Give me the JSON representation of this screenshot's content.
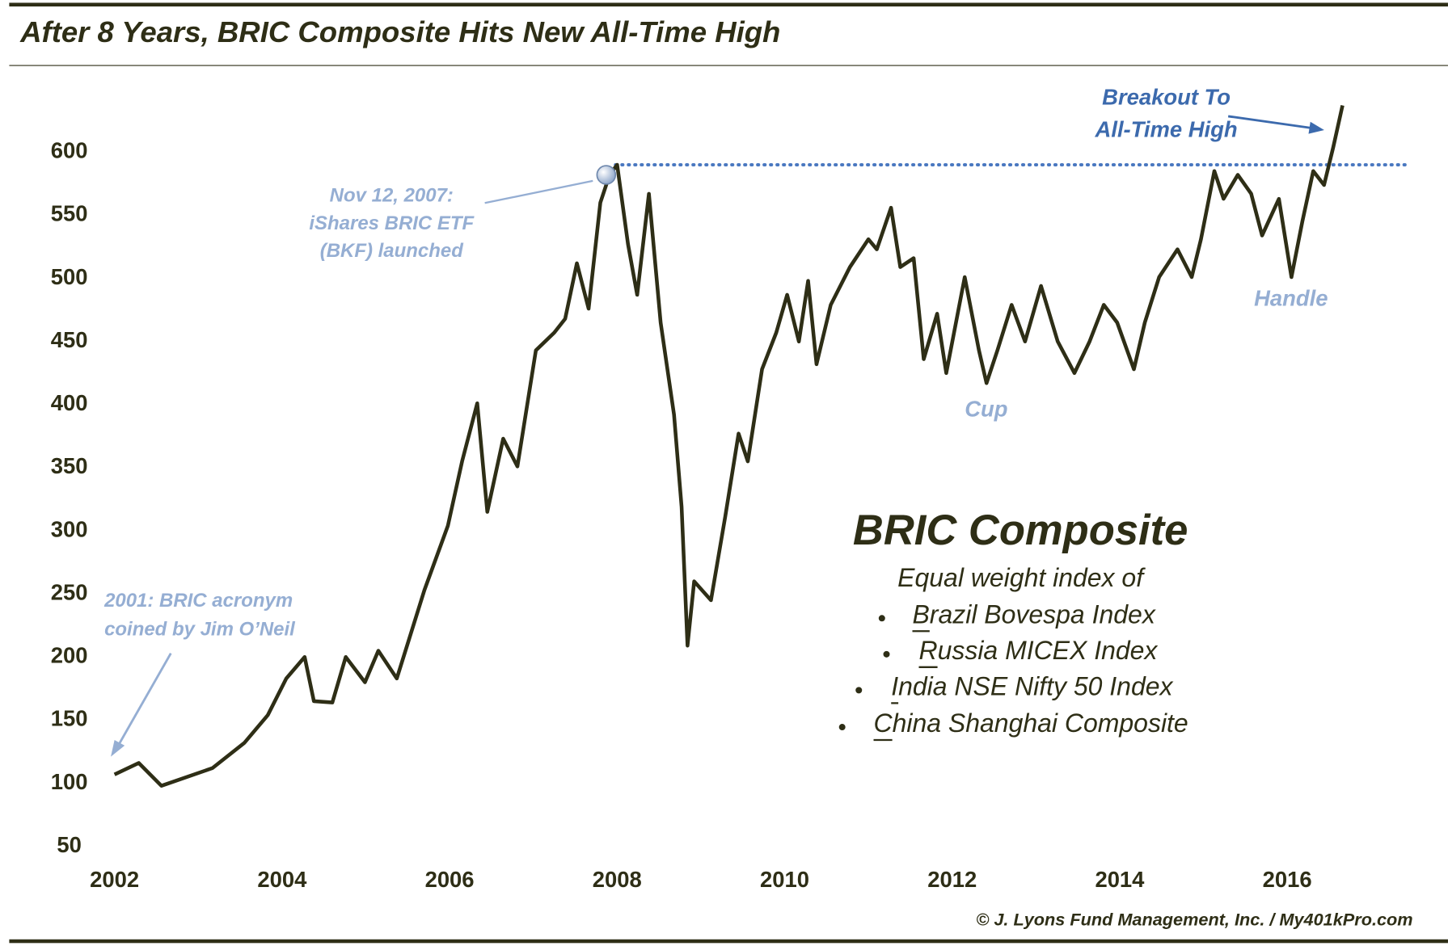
{
  "chart_data": {
    "type": "line",
    "title": "After 8 Years, BRIC Composite Hits New All-Time High",
    "x": [
      2002.0,
      2002.29,
      2002.56,
      2003.17,
      2003.55,
      2003.83,
      2004.05,
      2004.27,
      2004.38,
      2004.6,
      2004.76,
      2004.99,
      2005.15,
      2005.37,
      2005.7,
      2005.98,
      2006.15,
      2006.33,
      2006.45,
      2006.64,
      2006.81,
      2007.03,
      2007.25,
      2007.38,
      2007.52,
      2007.66,
      2007.8,
      2007.91,
      2008.0,
      2008.13,
      2008.24,
      2008.38,
      2008.52,
      2008.68,
      2008.77,
      2008.84,
      2008.92,
      2009.12,
      2009.29,
      2009.45,
      2009.56,
      2009.73,
      2009.9,
      2010.03,
      2010.17,
      2010.28,
      2010.38,
      2010.55,
      2010.78,
      2011.0,
      2011.1,
      2011.27,
      2011.38,
      2011.54,
      2011.66,
      2011.82,
      2011.93,
      2012.15,
      2012.32,
      2012.41,
      2012.54,
      2012.71,
      2012.87,
      2013.06,
      2013.26,
      2013.46,
      2013.64,
      2013.81,
      2013.97,
      2014.17,
      2014.3,
      2014.47,
      2014.69,
      2014.86,
      2014.97,
      2015.13,
      2015.24,
      2015.41,
      2015.57,
      2015.7,
      2015.9,
      2016.05,
      2016.18,
      2016.31,
      2016.44,
      2016.55,
      2016.66
    ],
    "series": [
      {
        "name": "BRIC Composite",
        "color": "#2e2e16",
        "values": [
          107,
          116,
          98,
          112,
          132,
          154,
          183,
          200,
          165,
          164,
          200,
          180,
          205,
          183,
          253,
          304,
          355,
          401,
          315,
          373,
          351,
          443,
          457,
          468,
          512,
          476,
          560,
          582,
          590,
          527,
          487,
          567,
          465,
          392,
          319,
          209,
          260,
          245,
          311,
          377,
          355,
          428,
          457,
          487,
          450,
          498,
          432,
          479,
          509,
          531,
          523,
          556,
          509,
          516,
          436,
          472,
          425,
          501,
          443,
          417,
          443,
          479,
          450,
          494,
          450,
          425,
          450,
          479,
          465,
          428,
          465,
          501,
          523,
          501,
          531,
          585,
          563,
          582,
          567,
          534,
          563,
          501,
          545,
          585,
          574,
          604,
          637
        ]
      }
    ],
    "xlim": [
      2001.85,
      2017.5
    ],
    "xticks": [
      2002,
      2004,
      2006,
      2008,
      2010,
      2012,
      2014,
      2016
    ],
    "ylim": [
      37,
      665
    ],
    "yticks": [
      50,
      100,
      150,
      200,
      250,
      300,
      350,
      400,
      450,
      500,
      550,
      600
    ],
    "reference_line": 590,
    "highlight": {
      "x": 2007.87,
      "y": 582
    },
    "annotations": [
      {
        "lines": [
          "Nov 12, 2007:",
          "iShares BRIC ETF",
          "(BKF) launched"
        ]
      },
      {
        "lines": [
          "2001: BRIC acronym",
          "coined by Jim O’Neil"
        ]
      },
      {
        "lines": [
          "Breakout To",
          "All-Time High"
        ]
      },
      {
        "lines": [
          "Cup"
        ]
      },
      {
        "lines": [
          "Handle"
        ]
      }
    ],
    "description": {
      "subtitle": "Equal weight index of",
      "items": [
        "Brazil Bovespa Index",
        "Russia MICEX Index",
        "India NSE Nifty 50 Index",
        "China Shanghai Composite"
      ]
    },
    "source": "© J. Lyons Fund Management, Inc. / My401kPro.com"
  }
}
